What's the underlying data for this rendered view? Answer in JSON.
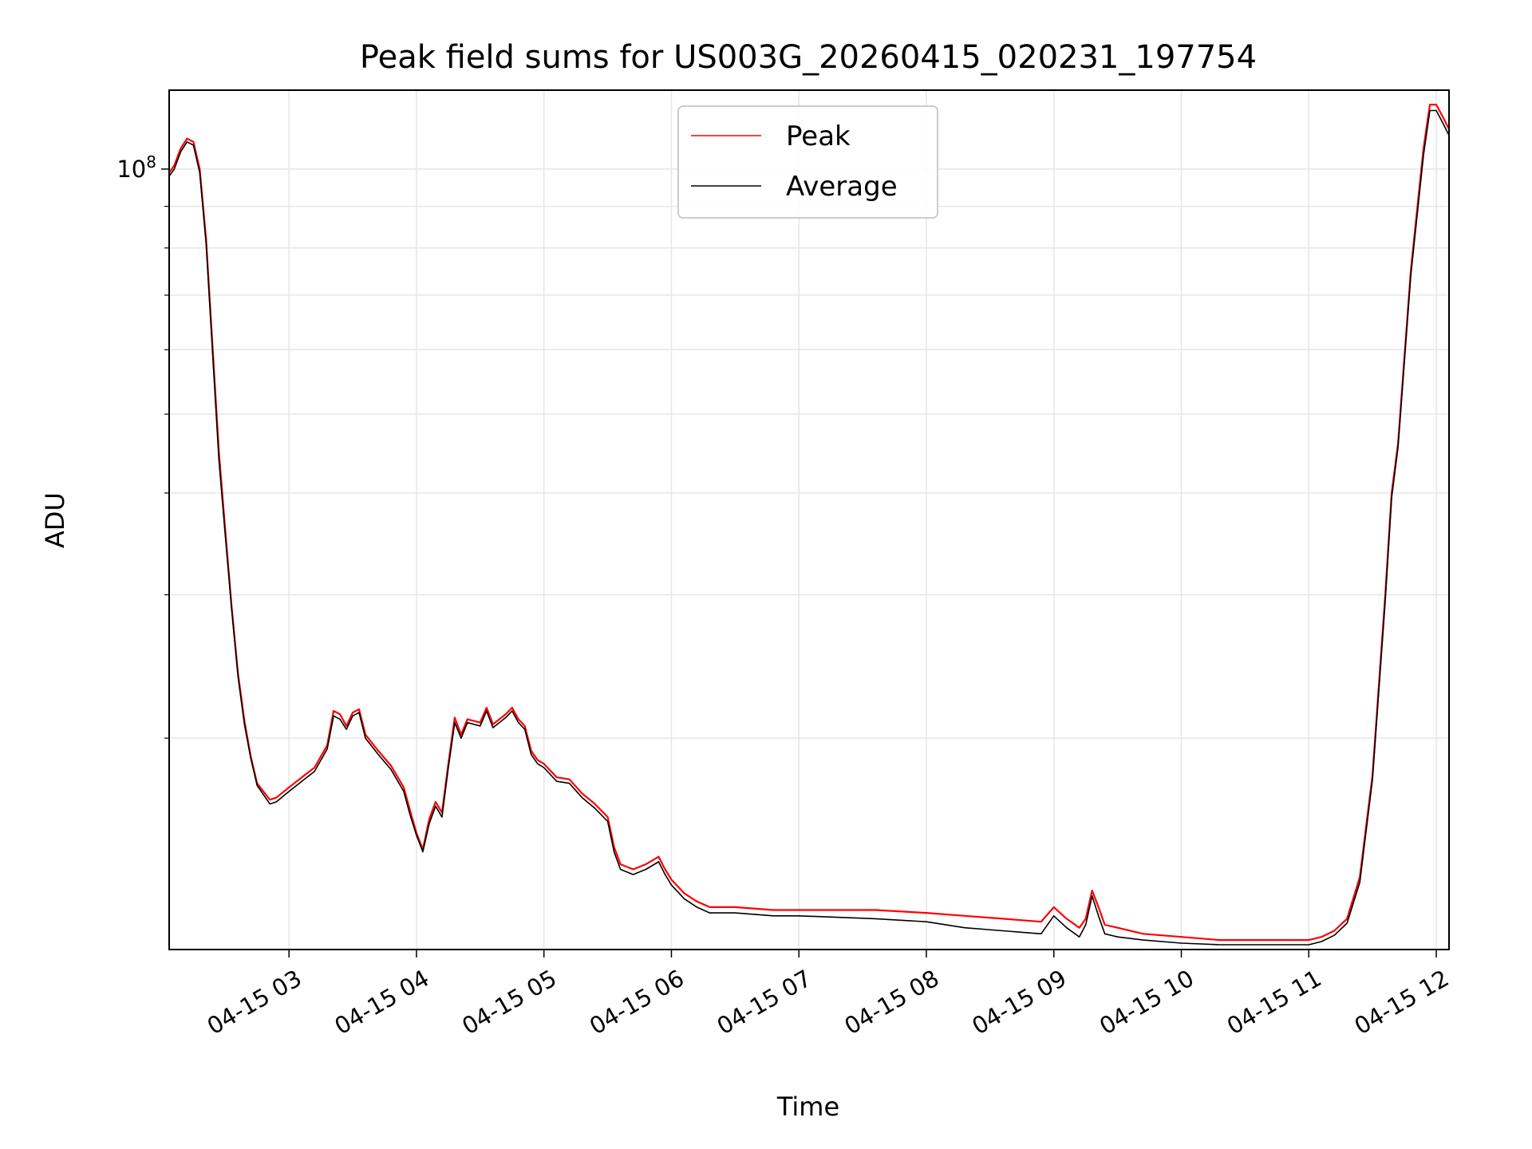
{
  "chart_data": {
    "type": "line",
    "title": "Peak field sums for US003G_20260415_020231_197754",
    "xlabel": "Time",
    "ylabel": "ADU",
    "yscale": "log",
    "grid": true,
    "legend_placement": "top-center",
    "xlim_hours": [
      2.06,
      12.1
    ],
    "ylim": [
      11000000,
      125000000
    ],
    "y_major_ticks": [
      {
        "value": 100000000,
        "base": "10",
        "exp": "8"
      }
    ],
    "y_minor_ticks": [
      20000000,
      30000000,
      40000000,
      50000000,
      60000000,
      70000000,
      80000000,
      90000000
    ],
    "x_ticks": [
      {
        "hour": 3,
        "label": "04-15 03"
      },
      {
        "hour": 4,
        "label": "04-15 04"
      },
      {
        "hour": 5,
        "label": "04-15 05"
      },
      {
        "hour": 6,
        "label": "04-15 06"
      },
      {
        "hour": 7,
        "label": "04-15 07"
      },
      {
        "hour": 8,
        "label": "04-15 08"
      },
      {
        "hour": 9,
        "label": "04-15 09"
      },
      {
        "hour": 10,
        "label": "04-15 10"
      },
      {
        "hour": 11,
        "label": "04-15 11"
      },
      {
        "hour": 12,
        "label": "04-15 12"
      }
    ],
    "series": [
      {
        "name": "Peak",
        "color": "#ff0000",
        "x_hours": [
          2.06,
          2.1,
          2.15,
          2.2,
          2.25,
          2.3,
          2.35,
          2.45,
          2.5,
          2.55,
          2.6,
          2.65,
          2.7,
          2.75,
          2.85,
          2.9,
          3.0,
          3.1,
          3.2,
          3.3,
          3.35,
          3.4,
          3.45,
          3.5,
          3.55,
          3.6,
          3.7,
          3.8,
          3.9,
          3.95,
          4.0,
          4.05,
          4.1,
          4.15,
          4.2,
          4.25,
          4.3,
          4.35,
          4.4,
          4.5,
          4.55,
          4.6,
          4.7,
          4.75,
          4.8,
          4.85,
          4.9,
          4.95,
          5.0,
          5.1,
          5.2,
          5.3,
          5.4,
          5.5,
          5.55,
          5.6,
          5.7,
          5.8,
          5.9,
          5.95,
          6.0,
          6.1,
          6.2,
          6.3,
          6.5,
          6.8,
          7.0,
          7.3,
          7.6,
          8.0,
          8.3,
          8.6,
          8.9,
          9.0,
          9.1,
          9.2,
          9.25,
          9.3,
          9.35,
          9.4,
          9.5,
          9.7,
          10.0,
          10.3,
          10.6,
          10.9,
          11.0,
          11.1,
          11.2,
          11.3,
          11.4,
          11.5,
          11.6,
          11.65,
          11.7,
          11.8,
          11.9,
          11.95,
          12.0,
          12.05,
          12.1
        ],
        "values": [
          99000000,
          101000000,
          106000000,
          109000000,
          108000000,
          100000000,
          82000000,
          45000000,
          36000000,
          29000000,
          24000000,
          21000000,
          19000000,
          17600000,
          16800000,
          16900000,
          17400000,
          17900000,
          18400000,
          19600000,
          21600000,
          21400000,
          20700000,
          21500000,
          21700000,
          20200000,
          19300000,
          18500000,
          17400000,
          16300000,
          15300000,
          14600000,
          15900000,
          16700000,
          16200000,
          18600000,
          21200000,
          20200000,
          21100000,
          20900000,
          21800000,
          20800000,
          21400000,
          21800000,
          21100000,
          20700000,
          19300000,
          18800000,
          18600000,
          17900000,
          17800000,
          17100000,
          16600000,
          16000000,
          14700000,
          14000000,
          13800000,
          14000000,
          14300000,
          13800000,
          13400000,
          12900000,
          12600000,
          12400000,
          12400000,
          12300000,
          12300000,
          12300000,
          12300000,
          12200000,
          12100000,
          12000000,
          11900000,
          12400000,
          12000000,
          11700000,
          12000000,
          13000000,
          12400000,
          11800000,
          11700000,
          11500000,
          11400000,
          11300000,
          11300000,
          11300000,
          11300000,
          11400000,
          11600000,
          12000000,
          13500000,
          18000000,
          30000000,
          40000000,
          46000000,
          75000000,
          106000000,
          120000000,
          120000000,
          116000000,
          112000000
        ]
      },
      {
        "name": "Average",
        "color": "#000000",
        "x_hours": [
          2.06,
          2.1,
          2.15,
          2.2,
          2.25,
          2.3,
          2.35,
          2.45,
          2.5,
          2.55,
          2.6,
          2.65,
          2.7,
          2.75,
          2.85,
          2.9,
          3.0,
          3.1,
          3.2,
          3.3,
          3.35,
          3.4,
          3.45,
          3.5,
          3.55,
          3.6,
          3.7,
          3.8,
          3.9,
          3.95,
          4.0,
          4.05,
          4.1,
          4.15,
          4.2,
          4.25,
          4.3,
          4.35,
          4.4,
          4.5,
          4.55,
          4.6,
          4.7,
          4.75,
          4.8,
          4.85,
          4.9,
          4.95,
          5.0,
          5.1,
          5.2,
          5.3,
          5.4,
          5.5,
          5.55,
          5.6,
          5.7,
          5.8,
          5.9,
          5.95,
          6.0,
          6.1,
          6.2,
          6.3,
          6.5,
          6.8,
          7.0,
          7.3,
          7.6,
          8.0,
          8.3,
          8.6,
          8.9,
          9.0,
          9.1,
          9.2,
          9.25,
          9.3,
          9.35,
          9.4,
          9.5,
          9.7,
          10.0,
          10.3,
          10.6,
          10.9,
          11.0,
          11.1,
          11.2,
          11.3,
          11.4,
          11.5,
          11.6,
          11.65,
          11.7,
          11.8,
          11.9,
          11.95,
          12.0,
          12.05,
          12.1
        ],
        "values": [
          98000000,
          100000000,
          105000000,
          108000000,
          107000000,
          99000000,
          81000000,
          44000000,
          35500000,
          28800000,
          23800000,
          20800000,
          18900000,
          17500000,
          16600000,
          16700000,
          17200000,
          17700000,
          18200000,
          19400000,
          21300000,
          21100000,
          20500000,
          21300000,
          21500000,
          20000000,
          19100000,
          18300000,
          17200000,
          16100000,
          15200000,
          14500000,
          15700000,
          16500000,
          16000000,
          18400000,
          20900000,
          20000000,
          20900000,
          20700000,
          21600000,
          20600000,
          21200000,
          21600000,
          20900000,
          20500000,
          19100000,
          18600000,
          18400000,
          17700000,
          17600000,
          16900000,
          16400000,
          15800000,
          14500000,
          13800000,
          13600000,
          13800000,
          14100000,
          13600000,
          13200000,
          12700000,
          12400000,
          12200000,
          12200000,
          12100000,
          12100000,
          12050000,
          12000000,
          11900000,
          11700000,
          11600000,
          11500000,
          12100000,
          11700000,
          11400000,
          11800000,
          12800000,
          12100000,
          11500000,
          11400000,
          11300000,
          11200000,
          11150000,
          11150000,
          11150000,
          11150000,
          11250000,
          11450000,
          11850000,
          13300000,
          17800000,
          29500000,
          39500000,
          45500000,
          74000000,
          104000000,
          118000000,
          118000000,
          114000000,
          110000000
        ]
      }
    ]
  }
}
